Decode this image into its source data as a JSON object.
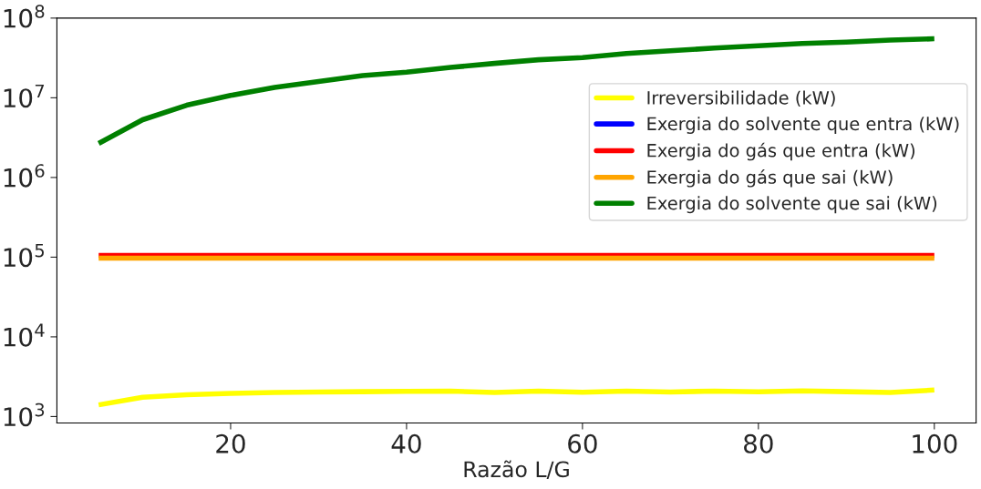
{
  "chart_data": {
    "type": "line",
    "xlabel": "Razão L/G",
    "log": "y",
    "x": [
      5,
      10,
      15,
      20,
      25,
      30,
      35,
      40,
      45,
      50,
      55,
      60,
      65,
      70,
      75,
      80,
      85,
      90,
      95,
      100
    ],
    "series": [
      {
        "name": "Irreversibilidade (kW)",
        "color": "#ffff00",
        "values": [
          1400,
          1750,
          1880,
          1950,
          2000,
          2030,
          2050,
          2070,
          2080,
          2000,
          2080,
          2020,
          2080,
          2030,
          2090,
          2040,
          2100,
          2050,
          2000,
          2150
        ]
      },
      {
        "name": "Exergia do solvente que entra (kW)",
        "color": "#0000ff",
        "values": [
          null,
          null,
          null,
          null,
          null,
          null,
          null,
          null,
          null,
          null,
          null,
          null,
          null,
          null,
          null,
          null,
          null,
          null,
          null,
          null
        ]
      },
      {
        "name": "Exergia do gás que entra (kW)",
        "color": "#ff0000",
        "values": [
          105000,
          105000,
          105000,
          105000,
          105000,
          105000,
          105000,
          105000,
          105000,
          105000,
          105000,
          105000,
          105000,
          105000,
          105000,
          105000,
          105000,
          105000,
          105000,
          105000
        ]
      },
      {
        "name": "Exergia do gás que sai (kW)",
        "color": "#ffa500",
        "values": [
          97000,
          97000,
          97000,
          97000,
          97000,
          97000,
          97000,
          97000,
          97000,
          97000,
          97000,
          97000,
          97000,
          97000,
          97000,
          97000,
          97000,
          97000,
          97000,
          97000
        ]
      },
      {
        "name": "Exergia do solvente que sai (kW)",
        "color": "#008000",
        "values": [
          2670000,
          5300000,
          8060000,
          10700000,
          13500000,
          16000000,
          19000000,
          21000000,
          24000000,
          27000000,
          30000000,
          32000000,
          36000000,
          39000000,
          42000000,
          45000000,
          48000000,
          50000000,
          53000000,
          55000000
        ]
      }
    ],
    "xlim": [
      0.25,
      104.75
    ],
    "xticks": [
      20,
      40,
      60,
      80,
      100
    ],
    "ylim": [
      830,
      100000000
    ],
    "yticks": [
      {
        "value": 1000,
        "label": "10$^{3}$"
      },
      {
        "value": 10000,
        "label": "10$^{4}$"
      },
      {
        "value": 100000,
        "label": "10$^{5}$"
      },
      {
        "value": 1000000,
        "label": "10$^{6}$"
      },
      {
        "value": 10000000,
        "label": "10$^{7}$"
      },
      {
        "value": 100000000,
        "label": "10$^{8}$"
      }
    ],
    "legend": "top right",
    "grid": false,
    "line_style": "solid",
    "marker": "none"
  }
}
